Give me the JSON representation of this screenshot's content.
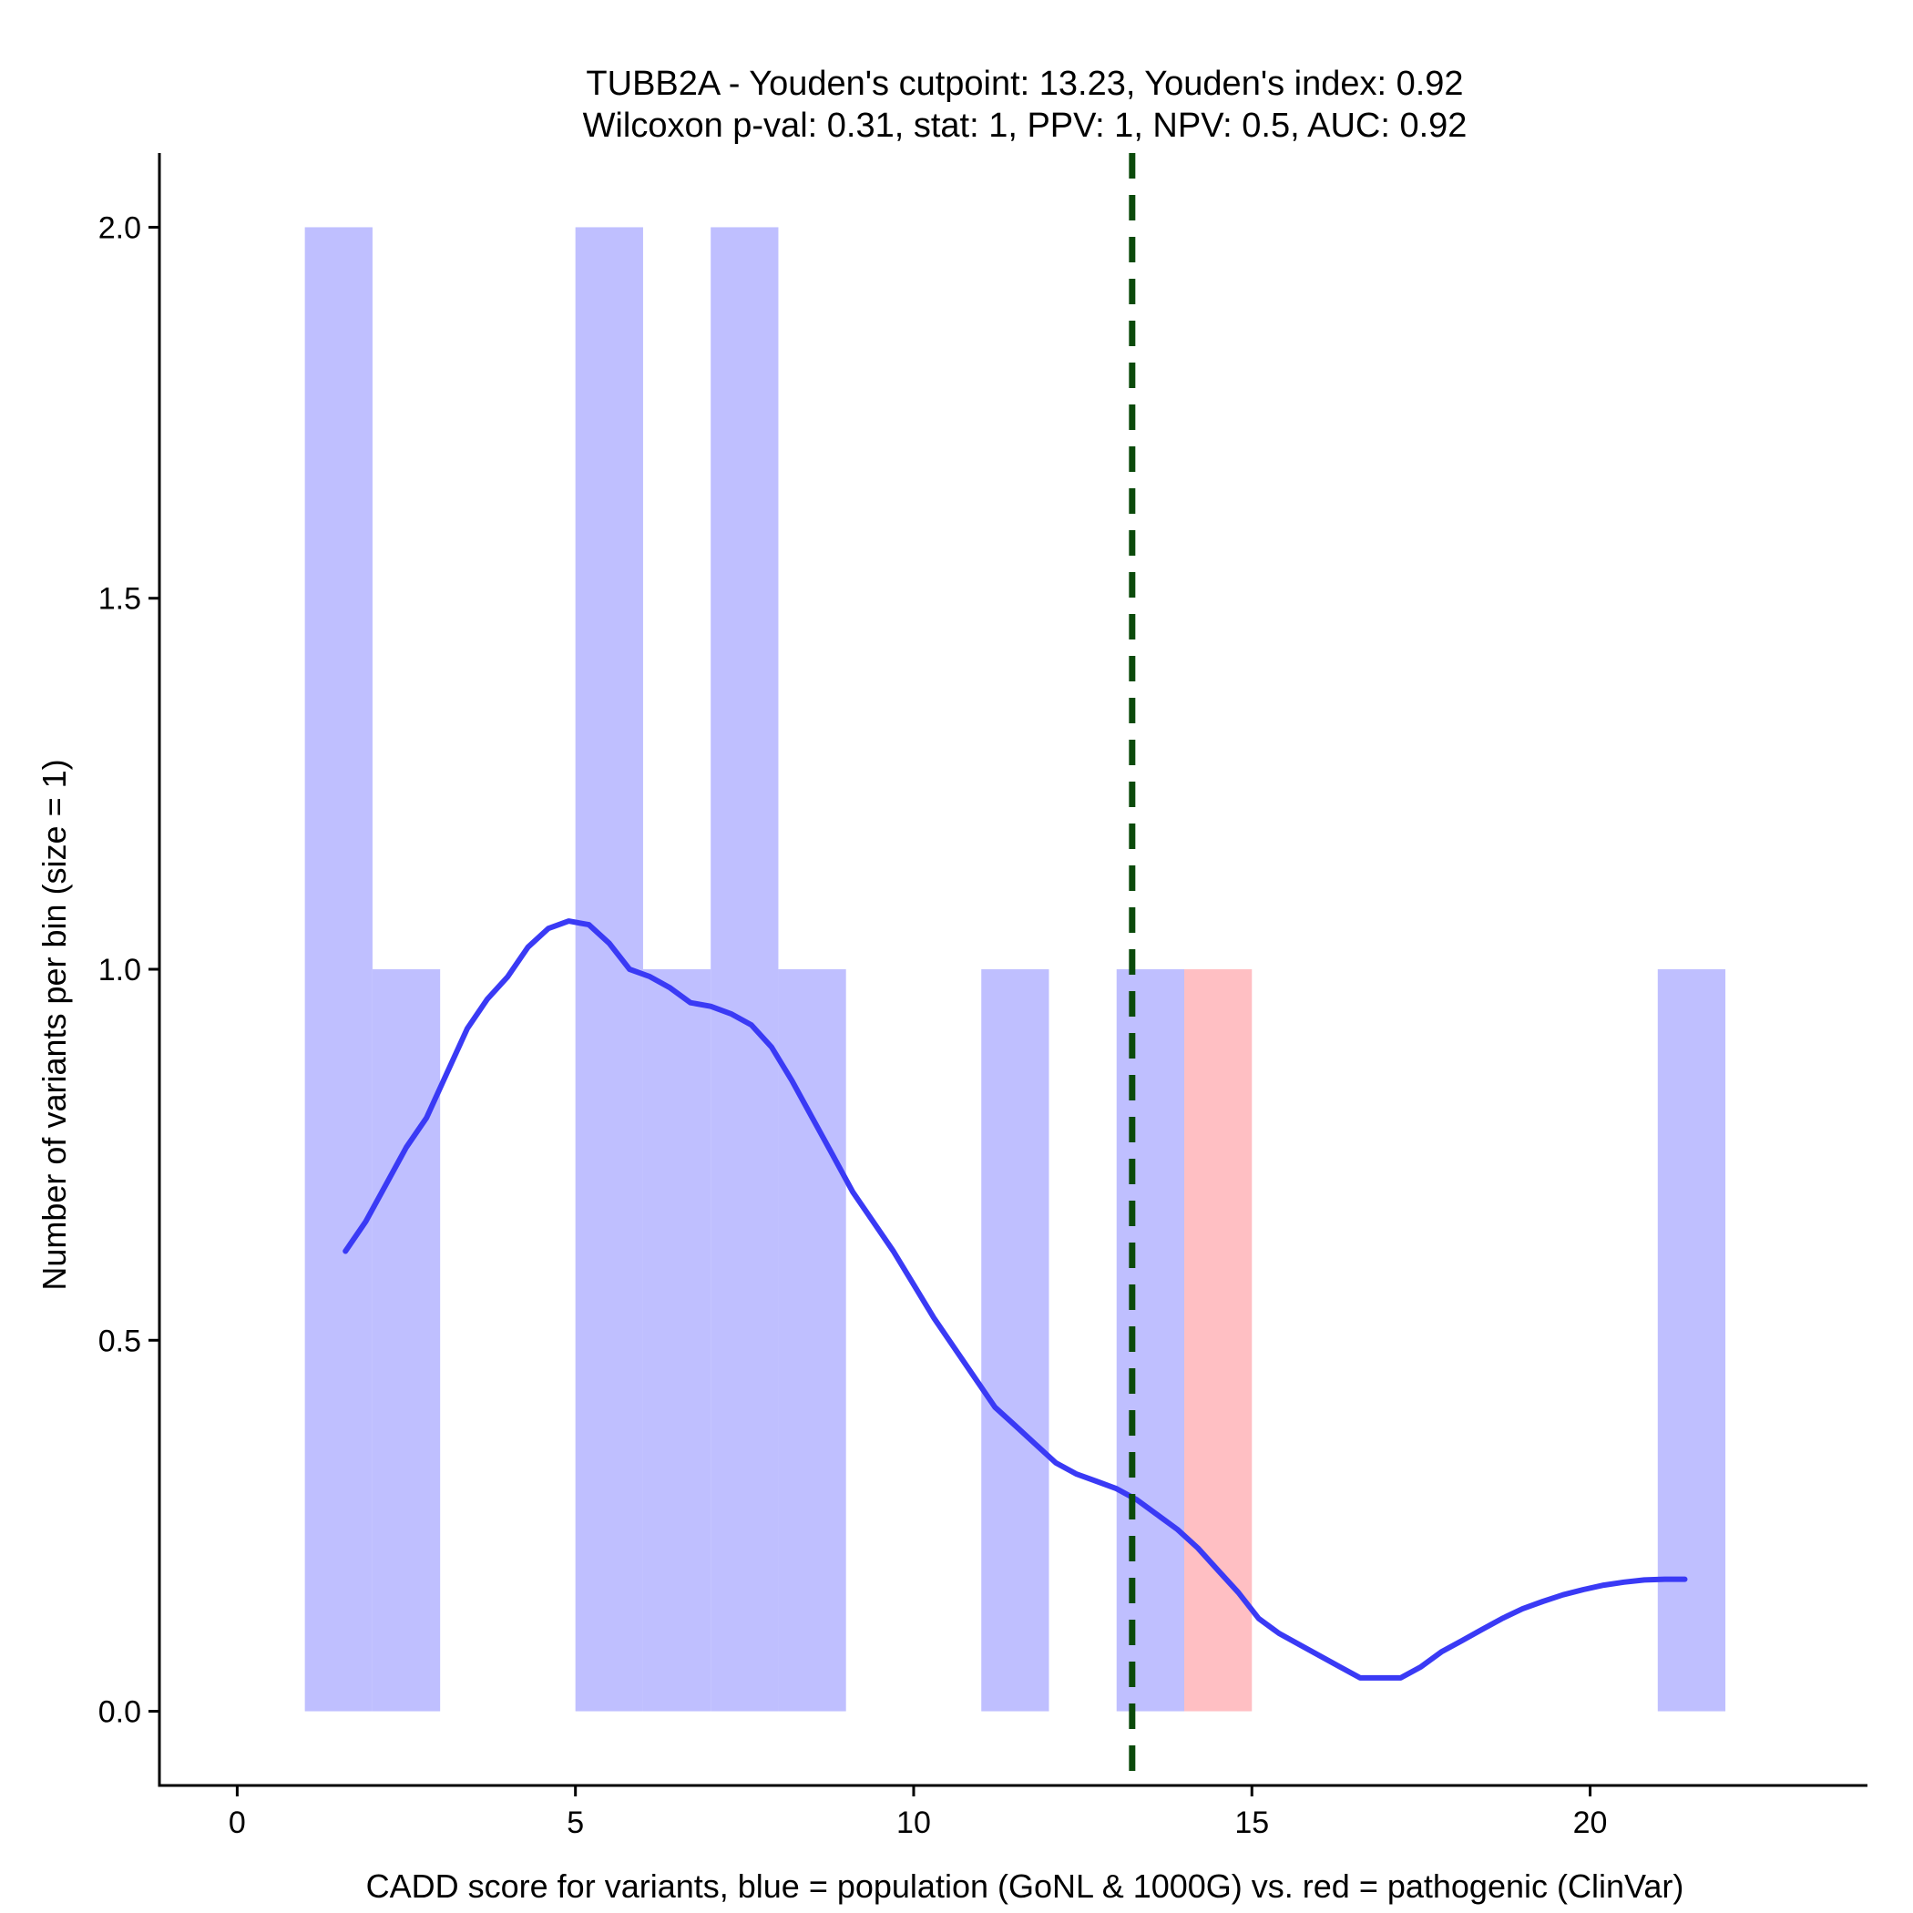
{
  "chart_data": {
    "type": "histogram",
    "title_line1": "TUBB2A - Youden's cutpoint: 13.23, Youden's index: 0.92",
    "title_line2": "Wilcoxon p-val: 0.31, stat: 1, PPV: 1, NPV: 0.5, AUC: 0.92",
    "xlabel": "CADD score for variants, blue = population (GoNL & 1000G) vs. red = pathogenic (ClinVar)",
    "ylabel": "Number of variants per bin (size = 1)",
    "xlim": [
      -1.15,
      24.1
    ],
    "ylim": [
      -0.1,
      2.1
    ],
    "x_ticks": [
      0,
      5,
      10,
      15,
      20
    ],
    "y_ticks": [
      "0.0",
      "0.5",
      "1.0",
      "1.5",
      "2.0"
    ],
    "bin_width": 1,
    "cutpoint": 13.23,
    "colors": {
      "population_fill": "#bfbfff",
      "pathogenic_fill": "#ffbfc3",
      "density_line": "#3a3af5",
      "cutpoint_line": "#0b4a0b"
    },
    "series": [
      {
        "name": "population (GoNL & 1000G)",
        "bins": [
          {
            "start": 1,
            "count": 2
          },
          {
            "start": 2,
            "count": 1
          },
          {
            "start": 5,
            "count": 2
          },
          {
            "start": 6,
            "count": 1
          },
          {
            "start": 7,
            "count": 2
          },
          {
            "start": 8,
            "count": 1
          },
          {
            "start": 11,
            "count": 1
          },
          {
            "start": 13,
            "count": 1
          },
          {
            "start": 21,
            "count": 1
          }
        ]
      },
      {
        "name": "pathogenic (ClinVar)",
        "bins": [
          {
            "start": 14,
            "count": 1
          }
        ]
      }
    ],
    "density": {
      "x": [
        1.6,
        1.9,
        2.2,
        2.5,
        2.8,
        3.1,
        3.4,
        3.7,
        4.0,
        4.3,
        4.6,
        4.9,
        5.2,
        5.5,
        5.8,
        6.1,
        6.4,
        6.7,
        7.0,
        7.3,
        7.6,
        7.9,
        8.2,
        8.5,
        8.8,
        9.1,
        9.4,
        9.7,
        10.0,
        10.3,
        10.6,
        10.9,
        11.2,
        11.5,
        11.8,
        12.1,
        12.4,
        12.7,
        13.0,
        13.3,
        13.6,
        13.9,
        14.2,
        14.5,
        14.8,
        15.1,
        15.4,
        15.7,
        16.0,
        16.3,
        16.6,
        16.9,
        17.2,
        17.5,
        17.8,
        18.1,
        18.4,
        18.7,
        19.0,
        19.3,
        19.6,
        19.9,
        20.2,
        20.5,
        20.8,
        21.1,
        21.4
      ],
      "y": [
        0.62,
        0.66,
        0.71,
        0.76,
        0.8,
        0.86,
        0.92,
        0.96,
        0.99,
        1.03,
        1.055,
        1.065,
        1.06,
        1.035,
        1.0,
        0.99,
        0.975,
        0.955,
        0.95,
        0.94,
        0.925,
        0.895,
        0.85,
        0.8,
        0.75,
        0.7,
        0.66,
        0.62,
        0.575,
        0.53,
        0.49,
        0.45,
        0.41,
        0.385,
        0.36,
        0.335,
        0.32,
        0.31,
        0.3,
        0.285,
        0.265,
        0.245,
        0.22,
        0.19,
        0.16,
        0.125,
        0.105,
        0.09,
        0.075,
        0.06,
        0.045,
        0.045,
        0.045,
        0.06,
        0.08,
        0.095,
        0.11,
        0.125,
        0.138,
        0.148,
        0.157,
        0.164,
        0.17,
        0.174,
        0.177,
        0.178,
        0.178
      ]
    }
  }
}
